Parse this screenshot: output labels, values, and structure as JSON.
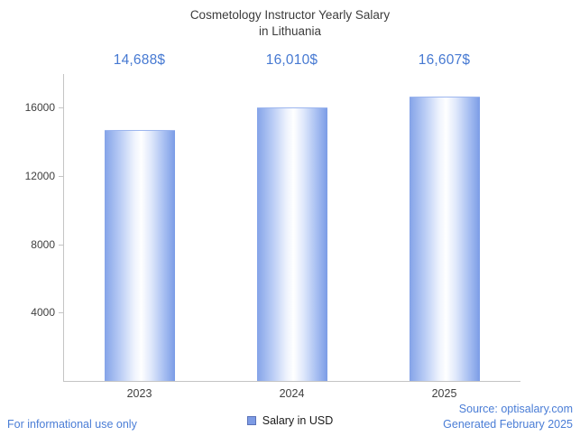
{
  "title": {
    "line1": "Cosmetology Instructor Yearly Salary",
    "line2": "in Lithuania"
  },
  "chart_data": {
    "type": "bar",
    "title": "Cosmetology Instructor Yearly Salary in Lithuania",
    "categories": [
      "2023",
      "2024",
      "2025"
    ],
    "values": [
      14688,
      16010,
      16607
    ],
    "value_labels": [
      "14,688$",
      "16,010$",
      "16,607$"
    ],
    "series_name": "Salary in USD",
    "xlabel": "",
    "ylabel": "",
    "ylim": [
      0,
      18000
    ],
    "yticks": [
      4000,
      8000,
      12000,
      16000
    ],
    "ytick_labels": [
      "4000",
      "8000",
      "12000",
      "16000"
    ],
    "grid": false,
    "legend_position": "bottom",
    "bar_color": "#7b9ce6"
  },
  "legend": {
    "label": "Salary in USD"
  },
  "footer": {
    "disclaimer": "For informational use only",
    "source": "Source: optisalary.com",
    "generated": "Generated February 2025"
  },
  "colors": {
    "accent_blue": "#4a7dd6",
    "value_label_blue": "#4679d2",
    "title_gray": "#3c3c3c",
    "axis_gray": "#c4c4c4"
  }
}
